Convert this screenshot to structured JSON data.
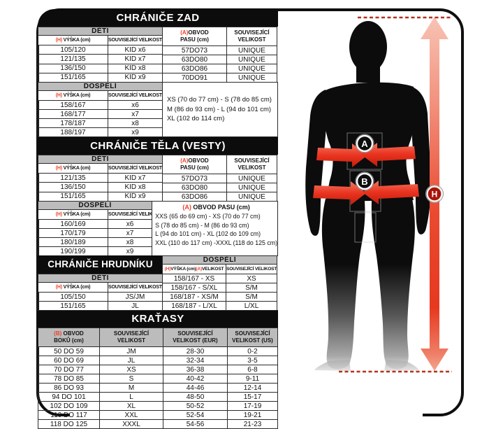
{
  "colors": {
    "accent_red": "#e8432b",
    "band_gray": "#bcbcbc",
    "header_black": "#0c0c0c",
    "arrow_red": "#ea4a31"
  },
  "zad": {
    "title": "CHRÁNIČE ZAD",
    "deti_band": "DĚTI",
    "dospeli_band": "DOSPĚLÍ",
    "h_prefix": "(H)",
    "h_label": "VÝŠKA (cm)",
    "size_label": "SOUVISEJÍCÍ VELIKOST",
    "a_prefix": "(A)",
    "a_line1": "OBVOD",
    "a_line2": "PASU (cm)",
    "size_line1": "SOUVISEJÍCÍ",
    "size_line2": "VELIKOST",
    "deti_rows": [
      [
        "105/120",
        "KID x6"
      ],
      [
        "121/135",
        "KID x7"
      ],
      [
        "136/150",
        "KID x8"
      ],
      [
        "151/165",
        "KID x9"
      ]
    ],
    "deti_right_rows": [
      [
        "57DO73",
        "UNIQUE"
      ],
      [
        "63DO80",
        "UNIQUE"
      ],
      [
        "63DO86",
        "UNIQUE"
      ],
      [
        "70DO91",
        "UNIQUE"
      ]
    ],
    "dospeli_rows": [
      [
        "158/167",
        "x6"
      ],
      [
        "168/177",
        "x7"
      ],
      [
        "178/187",
        "x8"
      ],
      [
        "188/197",
        "x9"
      ]
    ],
    "dospeli_sizes": [
      "XS (70 do 77 cm) - S (78 do 85 cm)",
      "M (86 do 93 cm) - L (94 do 101 cm)",
      "XL (102 do 114 cm)"
    ]
  },
  "vesty": {
    "title": "CHRÁNIČE TĚLA (VESTY)",
    "deti_band": "DĚTI",
    "dospeli_band": "DOSPĚLÍ",
    "h_prefix": "(H)",
    "h_label": "VÝŠKA (cm)",
    "size_label": "SOUVISEJÍCÍ VELIKOST",
    "a_prefix": "(A)",
    "a_line1": "OBVOD",
    "a_line2": "PASU (cm)",
    "size_line1": "SOUVISEJÍCÍ",
    "size_line2": "VELIKOST",
    "deti_rows": [
      [
        "121/135",
        "KID x7"
      ],
      [
        "136/150",
        "KID x8"
      ],
      [
        "151/165",
        "KID x9"
      ]
    ],
    "deti_right_rows": [
      [
        "57DO73",
        "UNIQUE"
      ],
      [
        "63DO80",
        "UNIQUE"
      ],
      [
        "63DO86",
        "UNIQUE"
      ]
    ],
    "dospeli_rows": [
      [
        "160/169",
        "x6"
      ],
      [
        "170/179",
        "x7"
      ],
      [
        "180/189",
        "x8"
      ],
      [
        "190/199",
        "x9"
      ]
    ],
    "dospeli_header_prefix": "(A)",
    "dospeli_header_label": " OBVOD PASU (cm)",
    "dospeli_sizes": [
      "XXS (65 do 69 cm) - XS (70 do 77 cm)",
      "S (78 do 85 cm) - M (86 do 93 cm)",
      "L (94 do 101 cm) - XL (102 do 109 cm)",
      "XXL (110 do 117 cm) -XXXL (118 do 125 cm)"
    ]
  },
  "hrudnik": {
    "title": "CHRÁNIČE HRUDNÍKU",
    "deti_band": "DĚTI",
    "h_prefix": "(H)",
    "h_label": "VÝŠKA (cm)",
    "size_label": "SOUVISEJÍCÍ VELIKOST",
    "deti_rows": [
      [
        "105/150",
        "JS/JM"
      ],
      [
        "151/165",
        "JL"
      ]
    ],
    "dospeli_band": "DOSPĚLÍ",
    "head_h_prefix": "(H)",
    "head_h_label": "VÝŠKA (cm)",
    "head_a_prefix": "(A)",
    "head_a_label": "VELIKOST",
    "head_size": "SOUVISEJÍCÍ VELIKOST",
    "dospeli_rows": [
      [
        "158/167 - XS",
        "XS"
      ],
      [
        "158/167 - S/XL",
        "S/M"
      ],
      [
        "168/187 - XS/M",
        "S/M"
      ],
      [
        "168/187 - L/XL",
        "L/XL"
      ]
    ]
  },
  "kratasy": {
    "title": "KRAŤASY",
    "b_prefix": "(B)",
    "col1_line1": " OBVOD",
    "col1_line2": "BOKŮ (cm)",
    "col2_line1": "SOUVISEJÍCÍ",
    "col2_line2": "VELIKOST",
    "col3_line1": "SOUVISEJÍCÍ",
    "col3_line2": "VELIKOST (EUR)",
    "col4_line1": "SOUVISEJÍCÍ",
    "col4_line2": "VELIKOST (US)",
    "rows": [
      [
        "50 DO 59",
        "JM",
        "28-30",
        "0-2"
      ],
      [
        "60 DO 69",
        "JL",
        "32-34",
        "3-5"
      ],
      [
        "70 DO 77",
        "XS",
        "36-38",
        "6-8"
      ],
      [
        "78 DO 85",
        "S",
        "40-42",
        "9-11"
      ],
      [
        "86 DO 93",
        "M",
        "44-46",
        "12-14"
      ],
      [
        "94 DO 101",
        "L",
        "48-50",
        "15-17"
      ],
      [
        "102 DO 109",
        "XL",
        "50-52",
        "17-19"
      ],
      [
        "110 DO 117",
        "XXL",
        "52-54",
        "19-21"
      ],
      [
        "118 DO 125",
        "XXXL",
        "54-56",
        "21-23"
      ]
    ]
  },
  "figure": {
    "badge_a": "A",
    "badge_b": "B",
    "badge_h": "H"
  }
}
